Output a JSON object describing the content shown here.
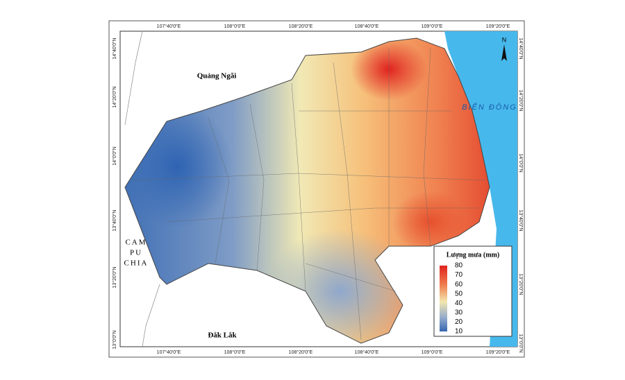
{
  "coordinates": {
    "top": [
      "107°40'0\"E",
      "108°0'0\"E",
      "108°20'0\"E",
      "108°40'0\"E",
      "109°0'0\"E",
      "109°20'0\"E"
    ],
    "bottom": [
      "107°40'0\"E",
      "108°0'0\"E",
      "108°20'0\"E",
      "108°40'0\"E",
      "109°0'0\"E",
      "109°20'0\"E"
    ],
    "left": [
      "14°40'0\"N",
      "14°20'0\"N",
      "14°0'0\"N",
      "13°40'0\"N",
      "13°20'0\"N",
      "13°0'0\"N"
    ],
    "right": [
      "14°40'0\"N",
      "14°20'0\"N",
      "14°0'0\"N",
      "13°40'0\"N",
      "13°20'0\"N",
      "13°0'0\"N"
    ]
  },
  "regions": {
    "quang_ngai": "Quảng Ngãi",
    "cambodia": [
      "CAM",
      "PU",
      "CHIA"
    ],
    "dak_lak": "Đắk Lắk",
    "sea": "BIỂN ĐÔNG"
  },
  "north_arrow": "N",
  "legend": {
    "title": "Lượng mưa (mm)",
    "ticks": [
      80,
      70,
      60,
      50,
      40,
      30,
      20,
      10
    ]
  }
}
